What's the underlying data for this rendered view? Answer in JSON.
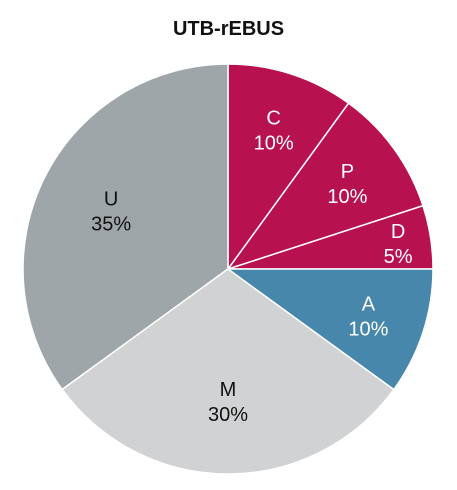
{
  "chart_data": {
    "type": "pie",
    "title": "UTB-rEBUS",
    "start_angle_deg": 0,
    "direction": "counterclockwise",
    "slices": [
      {
        "label": "D",
        "value": 5,
        "value_label": "5%",
        "color": "#b8114f",
        "label_color": "#ffffff"
      },
      {
        "label": "P",
        "value": 10,
        "value_label": "10%",
        "color": "#b8114f",
        "label_color": "#ffffff"
      },
      {
        "label": "C",
        "value": 10,
        "value_label": "10%",
        "color": "#b8114f",
        "label_color": "#ffffff"
      },
      {
        "label": "U",
        "value": 35,
        "value_label": "35%",
        "color": "#9ea6a9",
        "label_color": "#111111"
      },
      {
        "label": "M",
        "value": 30,
        "value_label": "30%",
        "color": "#d0d2d3",
        "label_color": "#111111"
      },
      {
        "label": "A",
        "value": 10,
        "value_label": "10%",
        "color": "#4687ab",
        "label_color": "#ffffff"
      }
    ]
  }
}
